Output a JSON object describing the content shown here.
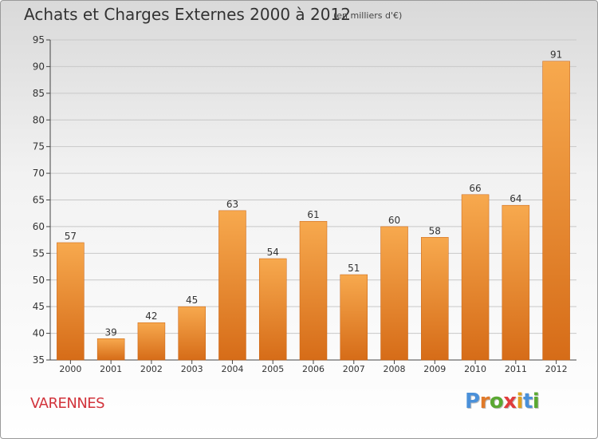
{
  "title": "Achats et Charges Externes 2000 à 2012",
  "subtitle": "(en milliers d'€)",
  "city": "VARENNES",
  "logo": {
    "text": "Proxiti",
    "letters": [
      {
        "ch": "P",
        "color": "#4a90d9"
      },
      {
        "ch": "r",
        "color": "#e07a2a"
      },
      {
        "ch": "o",
        "color": "#5aa832"
      },
      {
        "ch": "x",
        "color": "#e03c3c"
      },
      {
        "ch": "i",
        "color": "#e0a020"
      },
      {
        "ch": "t",
        "color": "#4a90d9"
      },
      {
        "ch": "i",
        "color": "#5aa832"
      }
    ]
  },
  "colors": {
    "bar_top": "#f7a94e",
    "bar_bottom": "#d66c18",
    "grid": "#c8c8c8",
    "axis": "#444444",
    "text": "#333333"
  },
  "chart_data": {
    "type": "bar",
    "categories": [
      "2000",
      "2001",
      "2002",
      "2003",
      "2004",
      "2005",
      "2006",
      "2007",
      "2008",
      "2009",
      "2010",
      "2011",
      "2012"
    ],
    "values": [
      57,
      39,
      42,
      45,
      63,
      54,
      61,
      51,
      60,
      58,
      66,
      64,
      91
    ],
    "ylim": [
      35,
      95
    ],
    "yticks": [
      35,
      40,
      45,
      50,
      55,
      60,
      65,
      70,
      75,
      80,
      85,
      90,
      95
    ],
    "grid": true,
    "data_labels": true
  }
}
